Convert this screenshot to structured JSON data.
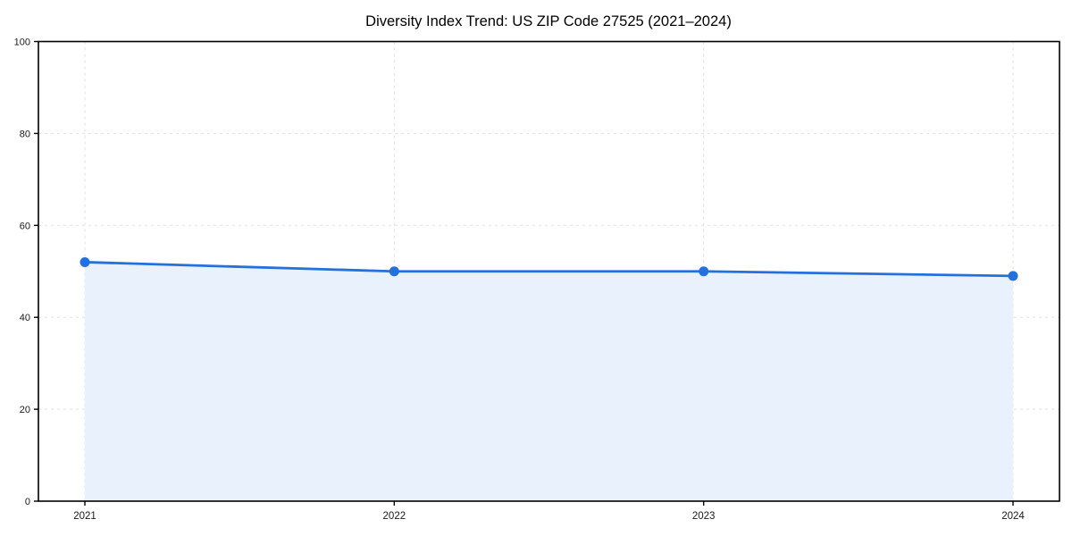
{
  "chart_data": {
    "type": "area",
    "title": "Diversity Index Trend: US ZIP Code 27525 (2021–2024)",
    "categories": [
      "2021",
      "2022",
      "2023",
      "2024"
    ],
    "values": [
      52,
      50,
      50,
      49
    ],
    "xlabel": "",
    "ylabel": "",
    "ylim": [
      0,
      100
    ],
    "yticks": [
      0,
      20,
      40,
      60,
      80,
      100
    ],
    "grid": true,
    "grid_style": "dashed",
    "legend": "none",
    "colors": {
      "line": "#2470df",
      "marker": "#2470df",
      "fill": "#e9f1fc",
      "grid": "#e2e2e2",
      "axis": "#000000",
      "tick_label": "#1a1a1a",
      "title": "#000000",
      "background": "#ffffff"
    }
  }
}
